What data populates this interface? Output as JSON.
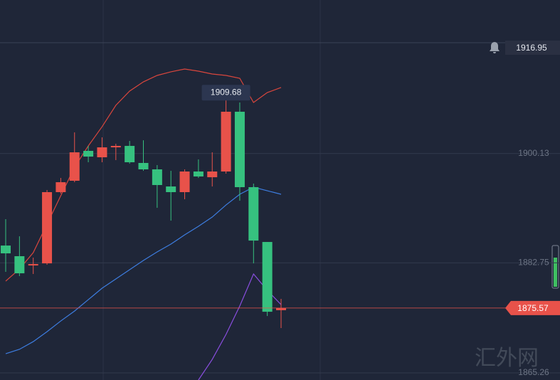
{
  "chart_data": {
    "type": "candlestick",
    "up_color": "#e8524a",
    "down_color": "#36c17f",
    "candles": [
      {
        "open": 1885.5,
        "high": 1889.69,
        "low": 1881.32,
        "close": 1884.26
      },
      {
        "open": 1883.81,
        "high": 1886.97,
        "low": 1880.64,
        "close": 1881.09
      },
      {
        "open": 1882.34,
        "high": 1883.58,
        "low": 1880.98,
        "close": 1882.56
      },
      {
        "open": 1882.67,
        "high": 1894.33,
        "low": 1882.45,
        "close": 1893.99
      },
      {
        "open": 1893.99,
        "high": 1896.25,
        "low": 1893.76,
        "close": 1895.57
      },
      {
        "open": 1895.8,
        "high": 1903.49,
        "low": 1895.57,
        "close": 1900.32
      },
      {
        "open": 1900.55,
        "high": 1901.34,
        "low": 1898.74,
        "close": 1899.64
      },
      {
        "open": 1899.53,
        "high": 1902.7,
        "low": 1898.74,
        "close": 1901.11
      },
      {
        "open": 1901.11,
        "high": 1901.68,
        "low": 1899.08,
        "close": 1901.34
      },
      {
        "open": 1901.34,
        "high": 1902.13,
        "low": 1898.51,
        "close": 1898.74
      },
      {
        "open": 1898.63,
        "high": 1902.24,
        "low": 1897.38,
        "close": 1897.61
      },
      {
        "open": 1897.61,
        "high": 1898.29,
        "low": 1891.5,
        "close": 1895.12
      },
      {
        "open": 1894.89,
        "high": 1897.38,
        "low": 1889.46,
        "close": 1893.99
      },
      {
        "open": 1893.99,
        "high": 1897.61,
        "low": 1892.86,
        "close": 1897.27
      },
      {
        "open": 1897.27,
        "high": 1899.19,
        "low": 1896.25,
        "close": 1896.48
      },
      {
        "open": 1896.36,
        "high": 1900.32,
        "low": 1894.89,
        "close": 1897.27
      },
      {
        "open": 1897.27,
        "high": 1909.68,
        "low": 1896.93,
        "close": 1906.77
      },
      {
        "open": 1906.77,
        "high": 1908.24,
        "low": 1892.63,
        "close": 1894.78
      },
      {
        "open": 1894.78,
        "high": 1895.35,
        "low": 1882.67,
        "close": 1886.29
      },
      {
        "open": 1886.07,
        "high": 1886.07,
        "low": 1874.3,
        "close": 1874.98
      },
      {
        "open": 1875.23,
        "high": 1877.02,
        "low": 1872.38,
        "close": 1875.57
      }
    ],
    "overlays": [
      {
        "color": "#d9463d",
        "values": [
          1879.85,
          1881.77,
          1884.37,
          1888.9,
          1893.42,
          1897.95,
          1901.34,
          1904.39,
          1907.79,
          1910.05,
          1911.52,
          1912.54,
          1913.11,
          1913.56,
          1913.22,
          1912.77,
          1912.54,
          1912.09,
          1908.24,
          1909.82,
          1910.62
        ]
      },
      {
        "color": "#3d7de0",
        "values": [
          1868.31,
          1869.01,
          1870.23,
          1871.81,
          1873.51,
          1875.09,
          1876.9,
          1878.72,
          1880.19,
          1881.66,
          1883.13,
          1884.49,
          1885.73,
          1887.2,
          1888.56,
          1890.03,
          1891.95,
          1893.65,
          1894.78,
          1894.21,
          1893.65
        ]
      },
      {
        "color": "#8a4ee0",
        "values": [
          null,
          null,
          null,
          null,
          null,
          null,
          null,
          null,
          null,
          null,
          null,
          null,
          null,
          null,
          1864.13,
          1867.4,
          1871.37,
          1875.89,
          1880.98,
          1878.38,
          1876.11
        ]
      }
    ],
    "ylim": [
      1864.13,
      1924.53
    ],
    "yticks": [
      1865.26,
      1882.75,
      1900.13
    ],
    "alert_price": 1916.95,
    "high_marker_index": 16,
    "watermark": "汇外网"
  }
}
